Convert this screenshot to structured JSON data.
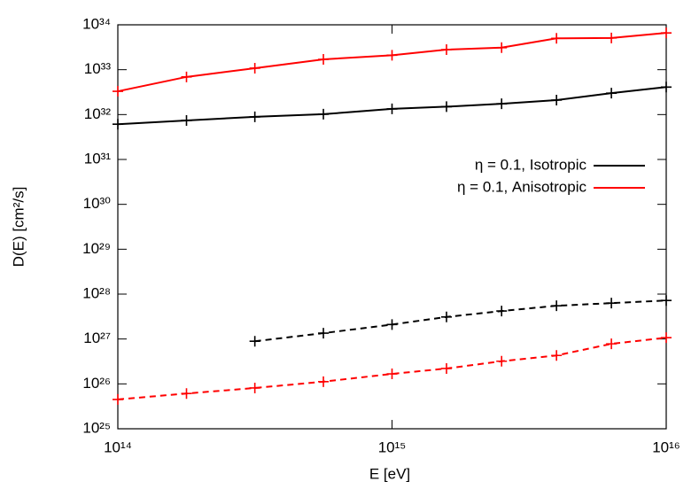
{
  "chart_data": {
    "type": "line",
    "xlabel": "E [eV]",
    "ylabel": "D(E) [cm²/s]",
    "xscale": "log",
    "yscale": "log",
    "xlim": [
      100000000000000.0,
      1e+16
    ],
    "ylim": [
      1e+25,
      1e+34
    ],
    "xticks": [
      {
        "value": 100000000000000.0,
        "label": "10¹⁴"
      },
      {
        "value": 1000000000000000.0,
        "label": "10¹⁵"
      },
      {
        "value": 1e+16,
        "label": "10¹⁶"
      }
    ],
    "yticks": [
      {
        "value": 1e+25,
        "label": "10²⁵"
      },
      {
        "value": 1e+26,
        "label": "10²⁶"
      },
      {
        "value": 1e+27,
        "label": "10²⁷"
      },
      {
        "value": 1e+28,
        "label": "10²⁸"
      },
      {
        "value": 1e+29,
        "label": "10²⁹"
      },
      {
        "value": 1e+30,
        "label": "10³⁰"
      },
      {
        "value": 1e+31,
        "label": "10³¹"
      },
      {
        "value": 1e+32,
        "label": "10³²"
      },
      {
        "value": 1e+33,
        "label": "10³³"
      },
      {
        "value": 1e+34,
        "label": "10³⁴"
      }
    ],
    "x": [
      100000000000000.0,
      178000000000000.0,
      316000000000000.0,
      562000000000000.0,
      1000000000000000.0,
      1580000000000000.0,
      2510000000000000.0,
      3980000000000000.0,
      6310000000000000.0,
      1e+16
    ],
    "legend": "upper right",
    "series": [
      {
        "name": "η = 0.1, Isotropic",
        "color": "#000000",
        "dashed": false,
        "values": [
          6.1e+31,
          7.4e+31,
          8.9e+31,
          1.02e+32,
          1.34e+32,
          1.5e+32,
          1.74e+32,
          2.1e+32,
          3e+32,
          4.1e+32
        ]
      },
      {
        "name": "η = 0.1, Anisotropic",
        "color": "#ff0000",
        "dashed": false,
        "values": [
          3.3e+32,
          6.9e+32,
          1.08e+33,
          1.7e+33,
          2.1e+33,
          2.8e+33,
          3.1e+33,
          5e+33,
          5.1e+33,
          6.6e+33
        ]
      },
      {
        "color": "#000000",
        "dashed": true,
        "values": [
          null,
          null,
          8.9e+26,
          1.35e+27,
          2.1e+27,
          3.1e+27,
          4.2e+27,
          5.5e+27,
          6.3e+27,
          7.2e+27
        ]
      },
      {
        "color": "#ff0000",
        "dashed": true,
        "values": [
          4.5e+25,
          6.1e+25,
          8.1e+25,
          1.12e+26,
          1.67e+26,
          2.2e+26,
          3.2e+26,
          4.3e+26,
          7.8e+26,
          1.07e+27
        ]
      }
    ]
  }
}
